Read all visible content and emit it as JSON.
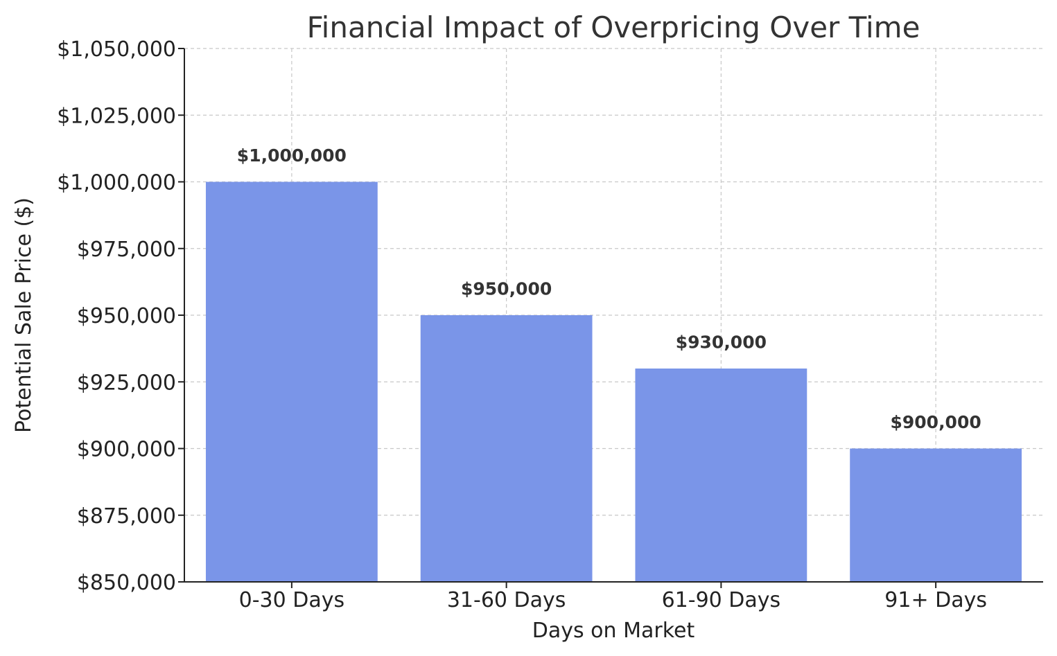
{
  "chart_data": {
    "type": "bar",
    "title": "Financial Impact of Overpricing Over Time",
    "xlabel": "Days on Market",
    "ylabel": "Potential Sale Price ($)",
    "categories": [
      "0-30 Days",
      "31-60 Days",
      "61-90 Days",
      "91+ Days"
    ],
    "values": [
      1000000,
      950000,
      930000,
      900000
    ],
    "data_labels": [
      "$1,000,000",
      "$950,000",
      "$930,000",
      "$900,000"
    ],
    "ylim": [
      850000,
      1050000
    ],
    "yticks": [
      850000,
      875000,
      900000,
      925000,
      950000,
      975000,
      1000000,
      1025000,
      1050000
    ],
    "ytick_labels": [
      "$850,000",
      "$875,000",
      "$900,000",
      "$925,000",
      "$950,000",
      "$975,000",
      "$1,000,000",
      "$1,025,000",
      "$1,050,000"
    ],
    "grid": true,
    "bar_color": "#7a95e8"
  }
}
